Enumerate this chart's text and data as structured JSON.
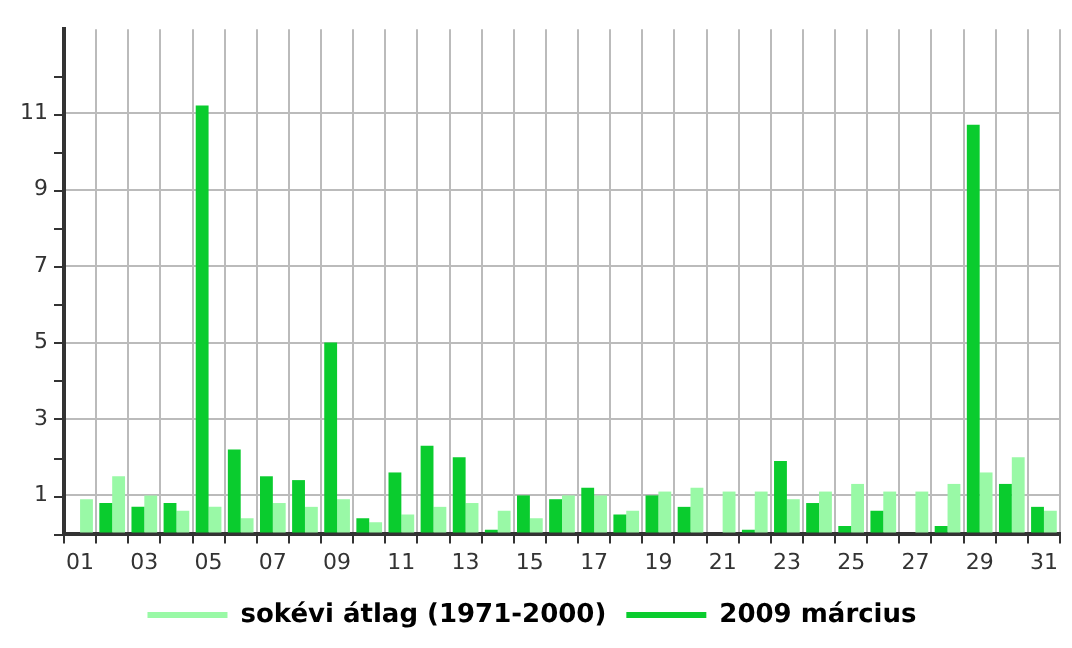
{
  "chart_data": {
    "type": "bar",
    "categories": [
      "01",
      null,
      "03",
      null,
      "05",
      null,
      "07",
      null,
      "09",
      null,
      "11",
      null,
      "13",
      null,
      "15",
      null,
      "17",
      null,
      "19",
      null,
      "21",
      null,
      "23",
      null,
      "25",
      null,
      "27",
      null,
      "29",
      null,
      "31"
    ],
    "series": [
      {
        "name": "2009 március",
        "color": "#0acc2e",
        "values": [
          0,
          0.8,
          0.7,
          0.8,
          11.2,
          2.2,
          1.5,
          1.4,
          5.0,
          0.4,
          1.6,
          2.3,
          2.0,
          0.1,
          1.0,
          0.9,
          1.2,
          0.5,
          1.0,
          0.7,
          0,
          0.1,
          1.9,
          0.8,
          0.2,
          0.6,
          0,
          0.2,
          10.7,
          1.3,
          0.7
        ]
      },
      {
        "name": "sokévi átlag (1971-2000)",
        "color": "#99f9a6",
        "values": [
          0.9,
          1.5,
          1.0,
          0.6,
          0.7,
          0.4,
          0.8,
          0.7,
          0.9,
          0.3,
          0.5,
          0.7,
          0.8,
          0.6,
          0.4,
          1.0,
          1.0,
          0.6,
          1.1,
          1.2,
          1.1,
          1.1,
          0.9,
          1.1,
          1.3,
          1.1,
          1.1,
          1.3,
          1.6,
          2.0,
          0.6
        ]
      }
    ],
    "ylim": [
      0,
      13.2
    ],
    "yticks": [
      {
        "value": 0,
        "label": null
      },
      1,
      {
        "value": 2,
        "label": null
      },
      3,
      {
        "value": 4,
        "label": null
      },
      5,
      {
        "value": 6,
        "label": null
      },
      7,
      {
        "value": 8,
        "label": null
      },
      9,
      {
        "value": 10,
        "label": null
      },
      11,
      {
        "value": 12,
        "label": null
      }
    ],
    "grid": true,
    "legend": "bottom"
  }
}
